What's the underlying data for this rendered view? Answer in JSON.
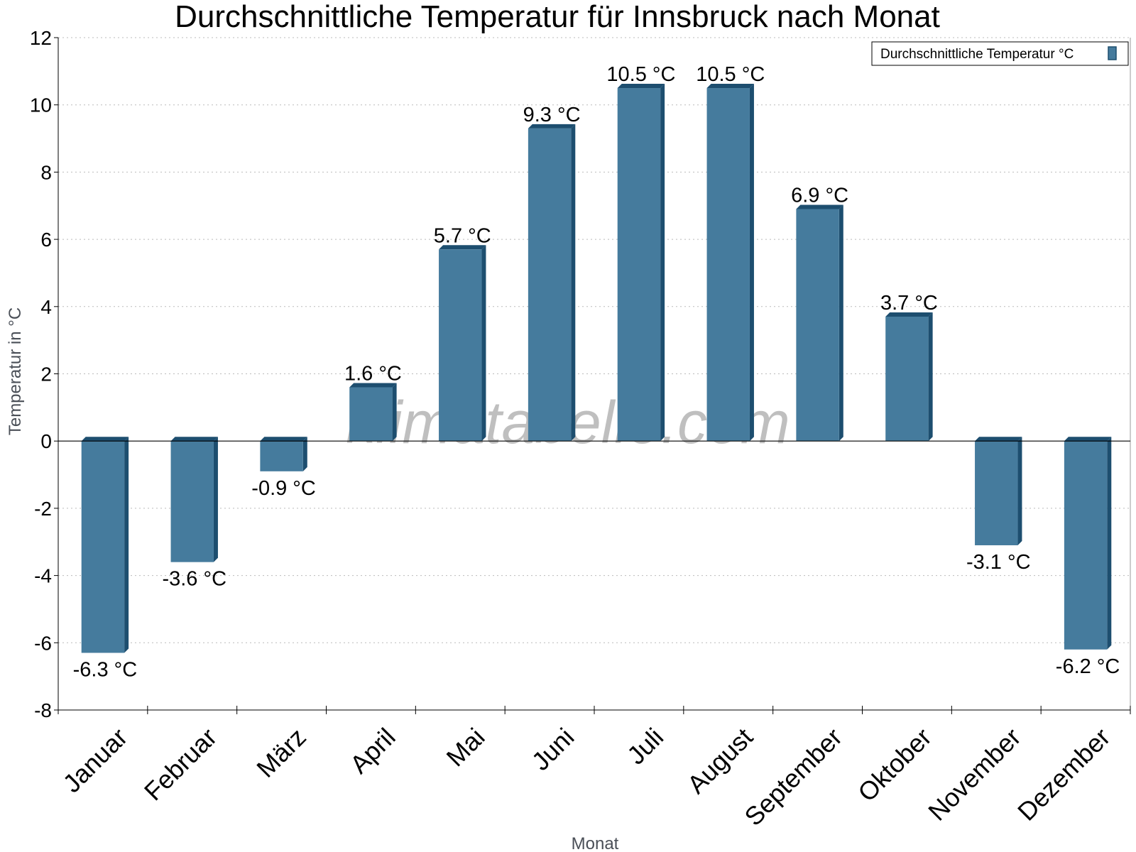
{
  "chart_data": {
    "type": "bar",
    "title": "Durchschnittliche Temperatur für Innsbruck nach Monat",
    "xlabel": "Monat",
    "ylabel": "Temperatur in °C",
    "ylim": [
      -8,
      12
    ],
    "yticks": [
      12,
      10,
      8,
      6,
      4,
      2,
      0,
      -2,
      -4,
      -6,
      -8
    ],
    "grid": true,
    "legend_position": "top-right",
    "categories": [
      "Januar",
      "Februar",
      "März",
      "April",
      "Mai",
      "Juni",
      "Juli",
      "August",
      "September",
      "Oktober",
      "November",
      "Dezember"
    ],
    "series": [
      {
        "name": "Durchschnittliche Temperatur °C",
        "values": [
          -6.3,
          -3.6,
          -0.9,
          1.6,
          5.7,
          9.3,
          10.5,
          10.5,
          6.9,
          3.7,
          -3.1,
          -6.2
        ],
        "labels": [
          "-6.3 °C",
          "-3.6 °C",
          "-0.9 °C",
          "1.6 °C",
          "5.7 °C",
          "9.3 °C",
          "10.5 °C",
          "10.5 °C",
          "6.9 °C",
          "3.7 °C",
          "-3.1 °C",
          "-6.2 °C"
        ]
      }
    ],
    "watermark": "klimatabelle.com",
    "colors": {
      "bar": "#457b9d",
      "bar_side": "#1d4e6f",
      "grid": "#bbbbbb"
    }
  }
}
